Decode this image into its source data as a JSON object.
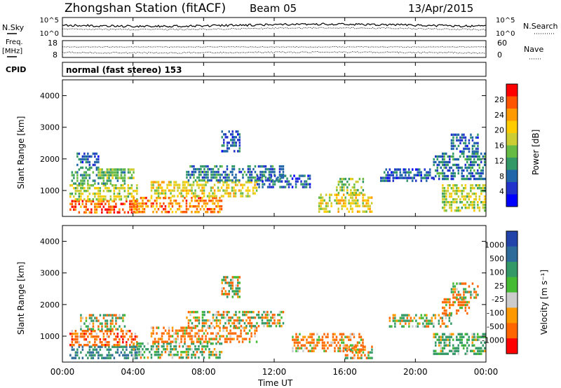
{
  "header": {
    "station": "Zhongshan Station (fitACF)",
    "beam": "Beam 05",
    "date": "13/Apr/2015"
  },
  "summary": {
    "nsky_label": "N.Sky",
    "nsearch_label": "N.Search",
    "nsky_ticks": [
      "10^5",
      "10^0"
    ],
    "nsearch_ticks": [
      "10^5",
      "10^0"
    ],
    "freq_label_1": "Freq.",
    "freq_label_2": "[MHz]",
    "freq_ticks": [
      "18",
      "8"
    ],
    "nave_label": "Nave",
    "nave_ticks": [
      "60",
      "0"
    ],
    "cpid_label": "CPID",
    "cpid_value": "normal (fast stereo) 153"
  },
  "axes": {
    "ylabel": "Slant Range [km]",
    "xlabel": "Time UT",
    "yticks": [
      "1000",
      "2000",
      "3000",
      "4000"
    ],
    "xticks": [
      "00:00",
      "04:00",
      "08:00",
      "12:00",
      "16:00",
      "20:00",
      "00:00"
    ]
  },
  "colorbars": {
    "power": {
      "label": "Power [dB]",
      "ticks": [
        "28",
        "24",
        "20",
        "16",
        "12",
        "8",
        "4"
      ],
      "colors": [
        "#ff0000",
        "#ff5500",
        "#ff9900",
        "#ffcc00",
        "#cccc33",
        "#66bb44",
        "#339966",
        "#2266aa",
        "#2233cc",
        "#0000ff"
      ]
    },
    "velocity": {
      "label": "Velocity [m s⁻¹]",
      "ticks": [
        "1000",
        "500",
        "100",
        "25",
        "-25",
        "-100",
        "-500",
        "-1000"
      ],
      "colors": [
        "#2244aa",
        "#2d6b9a",
        "#339966",
        "#44bb33",
        "#cccccc",
        "#ff9900",
        "#ff6600",
        "#ff0000"
      ]
    }
  },
  "chart_data": [
    {
      "type": "heatmap",
      "name": "Power [dB]",
      "x_range_hours": [
        0,
        24
      ],
      "y_range_km": [
        180,
        4500
      ],
      "color_range": [
        0,
        30
      ],
      "regions": [
        {
          "t": [
            0.4,
            4.2
          ],
          "r": [
            300,
            700
          ],
          "v": 26
        },
        {
          "t": [
            0.4,
            4.2
          ],
          "r": [
            700,
            1200
          ],
          "v": 16
        },
        {
          "t": [
            0.5,
            3.5
          ],
          "r": [
            1200,
            1700
          ],
          "v": 10
        },
        {
          "t": [
            0.8,
            2.0
          ],
          "r": [
            1700,
            2200
          ],
          "v": 6
        },
        {
          "t": [
            2.0,
            4.0
          ],
          "r": [
            1400,
            1700
          ],
          "v": 14
        },
        {
          "t": [
            4.0,
            9.0
          ],
          "r": [
            350,
            800
          ],
          "v": 24
        },
        {
          "t": [
            5.0,
            11.0
          ],
          "r": [
            800,
            1300
          ],
          "v": 18
        },
        {
          "t": [
            7.0,
            12.5
          ],
          "r": [
            1300,
            1800
          ],
          "v": 8
        },
        {
          "t": [
            9.0,
            10.0
          ],
          "r": [
            2200,
            2900
          ],
          "v": 6
        },
        {
          "t": [
            11.0,
            14.0
          ],
          "r": [
            1100,
            1500
          ],
          "v": 6
        },
        {
          "t": [
            14.5,
            17.5
          ],
          "r": [
            350,
            900
          ],
          "v": 18
        },
        {
          "t": [
            15.5,
            17.0
          ],
          "r": [
            900,
            1400
          ],
          "v": 14
        },
        {
          "t": [
            18.0,
            21.0
          ],
          "r": [
            1300,
            1700
          ],
          "v": 6
        },
        {
          "t": [
            21.0,
            23.9
          ],
          "r": [
            1400,
            2200
          ],
          "v": 8
        },
        {
          "t": [
            21.5,
            23.9
          ],
          "r": [
            400,
            1200
          ],
          "v": 16
        },
        {
          "t": [
            22.0,
            23.5
          ],
          "r": [
            2200,
            2800
          ],
          "v": 6
        }
      ]
    },
    {
      "type": "heatmap",
      "name": "Velocity [m s-1]",
      "x_range_hours": [
        0,
        24
      ],
      "y_range_km": [
        180,
        4500
      ],
      "color_range": [
        -1000,
        1000
      ],
      "regions": [
        {
          "t": [
            0.4,
            4.2
          ],
          "r": [
            300,
            700
          ],
          "v": 500
        },
        {
          "t": [
            0.4,
            4.2
          ],
          "r": [
            700,
            1200
          ],
          "v": -300
        },
        {
          "t": [
            1.0,
            3.5
          ],
          "r": [
            1200,
            1700
          ],
          "v": 0
        },
        {
          "t": [
            4.0,
            9.0
          ],
          "r": [
            350,
            800
          ],
          "v": 150
        },
        {
          "t": [
            5.0,
            11.0
          ],
          "r": [
            800,
            1300
          ],
          "v": -200
        },
        {
          "t": [
            7.0,
            12.5
          ],
          "r": [
            1300,
            1800
          ],
          "v": 10
        },
        {
          "t": [
            9.0,
            10.0
          ],
          "r": [
            2200,
            2900
          ],
          "v": 0
        },
        {
          "t": [
            13.0,
            17.0
          ],
          "r": [
            500,
            1100
          ],
          "v": -200
        },
        {
          "t": [
            16.0,
            17.5
          ],
          "r": [
            300,
            700
          ],
          "v": 0
        },
        {
          "t": [
            18.5,
            22.0
          ],
          "r": [
            1300,
            1700
          ],
          "v": 80
        },
        {
          "t": [
            21.0,
            23.9
          ],
          "r": [
            400,
            1100
          ],
          "v": 200
        },
        {
          "t": [
            21.5,
            23.0
          ],
          "r": [
            1700,
            2200
          ],
          "v": -200
        },
        {
          "t": [
            22.0,
            23.5
          ],
          "r": [
            2200,
            2700
          ],
          "v": 0
        }
      ]
    }
  ]
}
